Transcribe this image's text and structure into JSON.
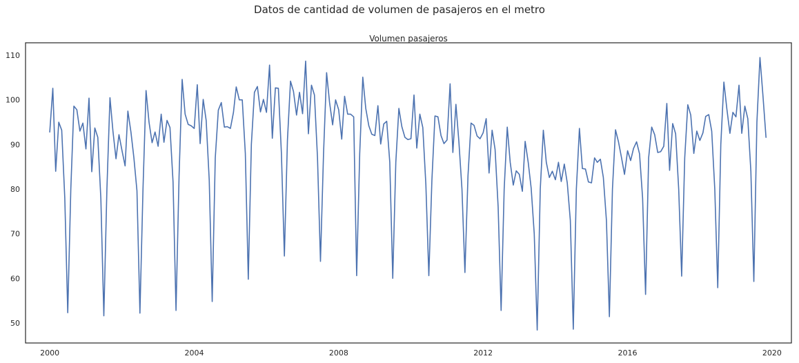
{
  "suptitle": "Datos de cantidad de volumen de pasajeros en el metro",
  "chart_data": {
    "type": "line",
    "title": "Volumen pasajeros",
    "xlabel": "",
    "ylabel": "",
    "xlim": [
      "1999-05-01",
      "2020-07-15"
    ],
    "ylim": [
      45.5,
      112.8
    ],
    "x_ticks": [
      "2000-01-01",
      "2004-01-01",
      "2008-01-01",
      "2012-01-01",
      "2016-01-01",
      "2020-01-01"
    ],
    "x_tick_labels": [
      "2000",
      "2004",
      "2008",
      "2012",
      "2016",
      "2020"
    ],
    "y_ticks": [
      50,
      60,
      70,
      80,
      90,
      100,
      110
    ],
    "grid": false,
    "legend": "none",
    "colors": {
      "series": "#4c72b0",
      "frame": "#262626",
      "text": "#262626"
    },
    "series": [
      {
        "name": "",
        "x_start": "2000-01",
        "frequency": "monthly",
        "values": [
          92.8,
          102.6,
          84.0,
          95.0,
          93.2,
          78.0,
          52.3,
          80.0,
          98.6,
          97.8,
          93.0,
          94.8,
          89.0,
          100.4,
          83.9,
          93.7,
          91.6,
          77.8,
          51.6,
          80.0,
          100.5,
          93.0,
          86.8,
          92.2,
          88.6,
          85.2,
          97.5,
          92.8,
          87.0,
          79.6,
          52.2,
          80.0,
          102.1,
          95.0,
          90.4,
          92.8,
          89.6,
          96.8,
          90.5,
          95.4,
          93.8,
          81.6,
          52.8,
          83.0,
          104.6,
          96.8,
          94.5,
          94.2,
          93.6,
          103.4,
          90.2,
          100.1,
          95.4,
          82.0,
          54.8,
          87.0,
          97.7,
          99.4,
          93.9,
          94.0,
          93.6,
          97.2,
          102.9,
          100.0,
          100.0,
          88.0,
          59.8,
          90.0,
          101.7,
          103.0,
          97.3,
          100.1,
          97.2,
          107.8,
          91.4,
          102.7,
          102.6,
          88.0,
          65.0,
          91.0,
          104.2,
          101.9,
          96.6,
          101.7,
          96.9,
          108.7,
          92.4,
          103.3,
          101.1,
          87.0,
          63.8,
          88.0,
          106.1,
          99.4,
          94.4,
          100.0,
          97.8,
          91.2,
          100.8,
          96.8,
          96.8,
          96.2,
          60.6,
          88.0,
          105.1,
          98.1,
          94.2,
          92.3,
          92.0,
          98.7,
          90.1,
          94.6,
          95.2,
          86.0,
          60.0,
          86.0,
          98.1,
          94.0,
          91.6,
          91.1,
          91.3,
          101.1,
          89.2,
          96.8,
          93.8,
          81.0,
          60.6,
          82.0,
          96.4,
          96.2,
          92.0,
          90.2,
          91.0,
          103.6,
          88.2,
          99.0,
          90.6,
          80.0,
          61.3,
          83.0,
          94.8,
          94.3,
          91.9,
          91.3,
          92.6,
          95.8,
          83.6,
          93.2,
          88.9,
          76.0,
          52.8,
          80.0,
          93.9,
          86.0,
          80.9,
          84.1,
          83.3,
          79.5,
          90.7,
          86.0,
          80.2,
          70.0,
          48.4,
          80.0,
          93.2,
          86.0,
          82.6,
          84.0,
          82.1,
          86.0,
          81.7,
          85.6,
          81.4,
          73.0,
          48.6,
          80.0,
          93.6,
          84.6,
          84.5,
          81.6,
          81.4,
          87.0,
          86.0,
          86.7,
          82.6,
          73.0,
          51.4,
          80.0,
          93.3,
          90.6,
          87.0,
          83.3,
          88.6,
          86.4,
          89.1,
          90.6,
          87.9,
          78.0,
          56.4,
          87.0,
          93.9,
          92.2,
          88.2,
          88.4,
          89.6,
          99.2,
          84.2,
          94.7,
          92.4,
          80.0,
          60.5,
          87.0,
          98.9,
          96.6,
          88.0,
          93.0,
          90.9,
          92.6,
          96.3,
          96.7,
          93.0,
          80.0,
          57.9,
          90.0,
          104.0,
          98.0,
          92.5,
          97.2,
          96.2,
          103.3,
          92.5,
          98.6,
          95.8,
          84.0,
          59.3,
          95.0,
          109.5,
          101.0,
          91.6
        ]
      }
    ]
  }
}
